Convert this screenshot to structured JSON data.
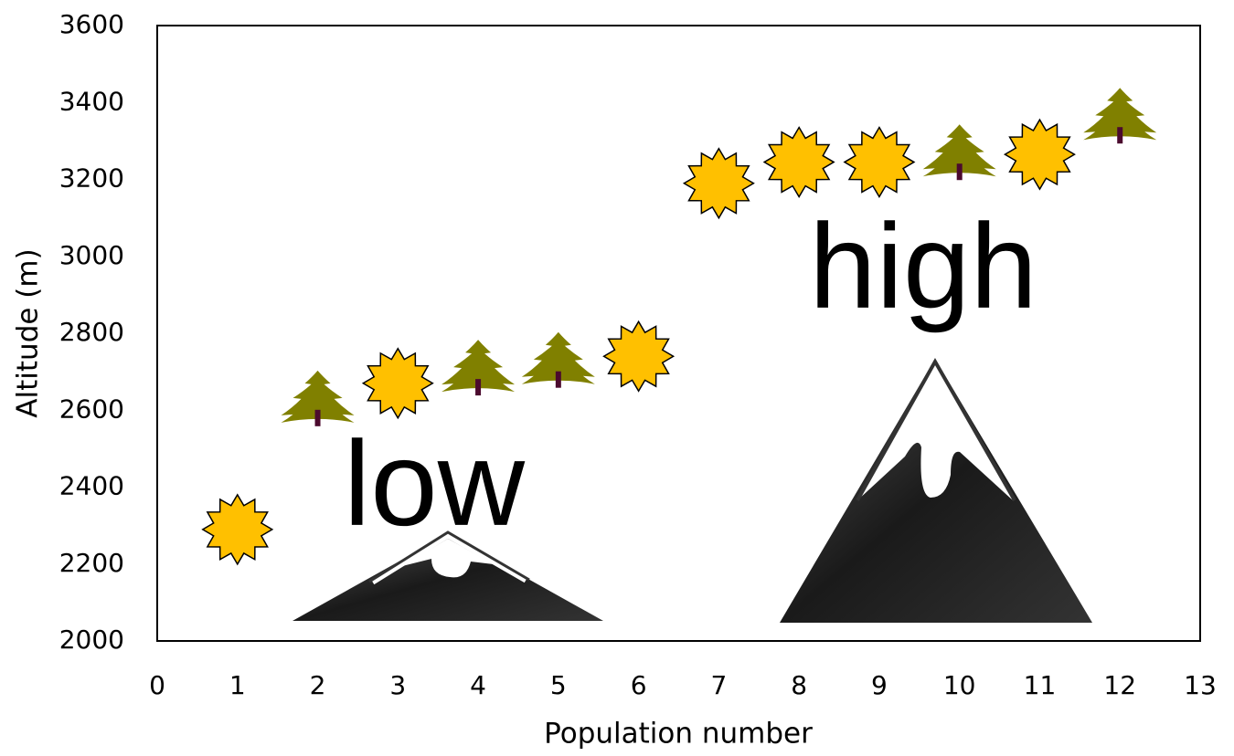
{
  "chart_data": {
    "type": "scatter",
    "x_label": "Population number",
    "y_label": "Altitude (m)",
    "xlim": [
      0,
      13
    ],
    "xticks": [
      0,
      1,
      2,
      3,
      4,
      5,
      6,
      7,
      8,
      9,
      10,
      11,
      12,
      13
    ],
    "ylim": [
      2000,
      3600
    ],
    "yticks": [
      2000,
      2200,
      2400,
      2600,
      2800,
      3000,
      3200,
      3400,
      3600
    ],
    "grid": false,
    "series": [
      {
        "marker": "star",
        "color": "#FFC000",
        "x": [
          1,
          3,
          6,
          7,
          8,
          9,
          11
        ],
        "values": [
          2290,
          2670,
          2740,
          3190,
          3245,
          3245,
          3265
        ]
      },
      {
        "marker": "tree",
        "color": "#808000",
        "x": [
          2,
          4,
          5,
          10,
          12
        ],
        "values": [
          2620,
          2700,
          2720,
          3260,
          3355
        ]
      }
    ],
    "annotations": [
      {
        "text": "low",
        "color": "#FF0000"
      },
      {
        "text": "high",
        "color": "#0000FF"
      }
    ]
  }
}
